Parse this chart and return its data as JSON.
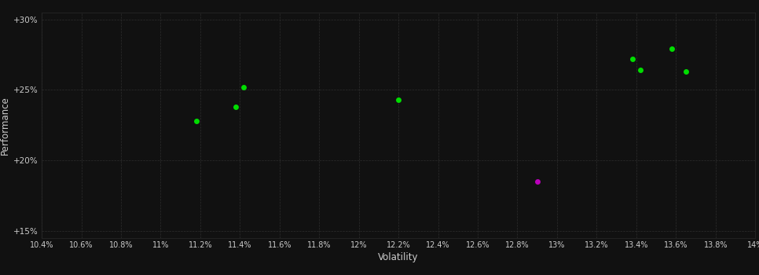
{
  "background_color": "#111111",
  "plot_bg_color": "#111111",
  "grid_color": "#2a2a2a",
  "text_color": "#cccccc",
  "xlabel": "Volatility",
  "ylabel": "Performance",
  "xlim": [
    0.104,
    0.14
  ],
  "ylim": [
    0.145,
    0.305
  ],
  "yticks": [
    0.15,
    0.2,
    0.25,
    0.3
  ],
  "ytick_labels": [
    "+15%",
    "+20%",
    "+25%",
    "+30%"
  ],
  "xticks": [
    0.104,
    0.106,
    0.108,
    0.11,
    0.112,
    0.114,
    0.116,
    0.118,
    0.12,
    0.122,
    0.124,
    0.126,
    0.128,
    0.13,
    0.132,
    0.134,
    0.136,
    0.138,
    0.14
  ],
  "xtick_labels": [
    "10.4%",
    "10.6%",
    "10.8%",
    "11%",
    "11.2%",
    "11.4%",
    "11.6%",
    "11.8%",
    "12%",
    "12.2%",
    "12.4%",
    "12.6%",
    "12.8%",
    "13%",
    "13.2%",
    "13.4%",
    "13.6%",
    "13.8%",
    "14%"
  ],
  "green_points": [
    [
      0.1118,
      0.228
    ],
    [
      0.1138,
      0.238
    ],
    [
      0.1142,
      0.252
    ],
    [
      0.122,
      0.243
    ],
    [
      0.1338,
      0.272
    ],
    [
      0.1342,
      0.264
    ],
    [
      0.1358,
      0.279
    ],
    [
      0.1365,
      0.263
    ]
  ],
  "magenta_points": [
    [
      0.129,
      0.185
    ]
  ],
  "green_color": "#00dd00",
  "magenta_color": "#bb00bb",
  "marker_size": 5
}
